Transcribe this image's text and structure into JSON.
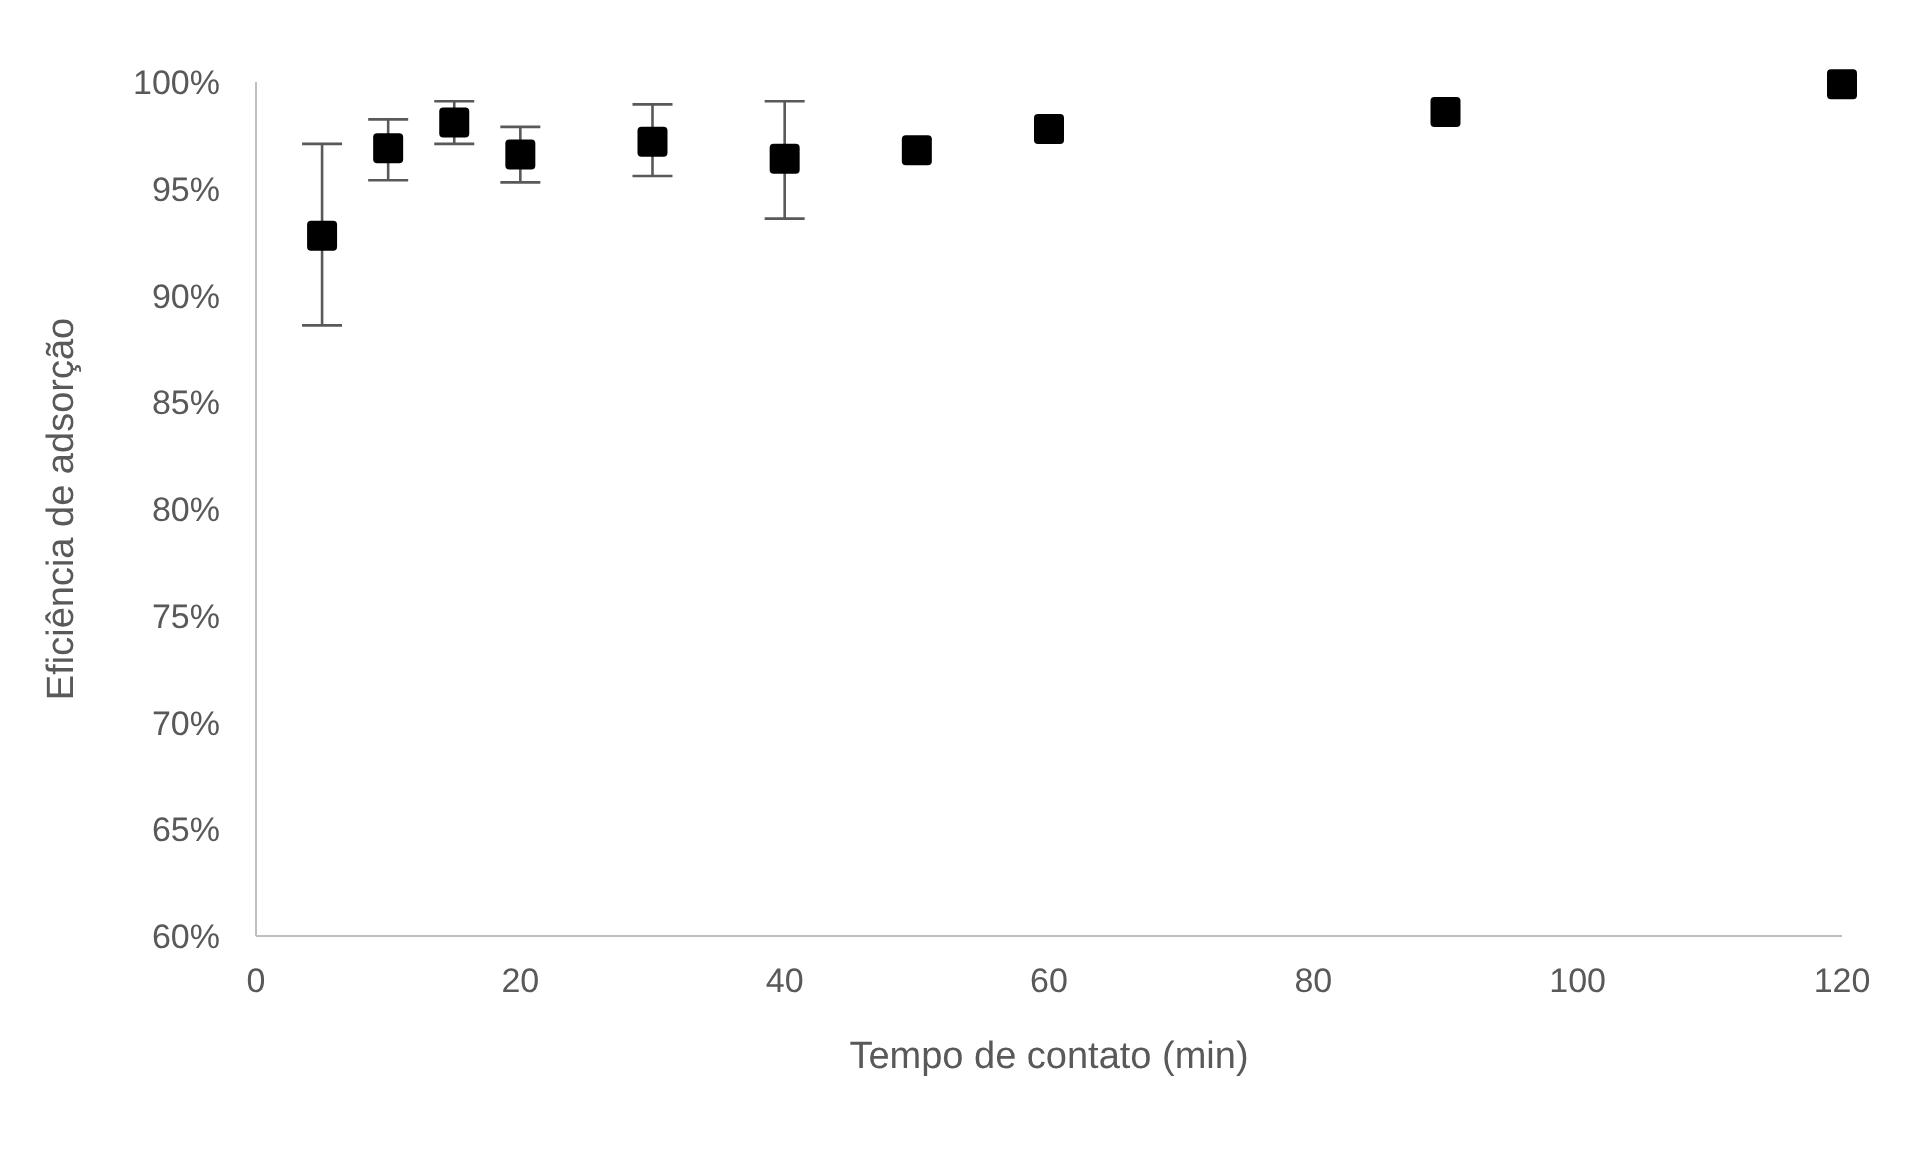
{
  "chart_data": {
    "type": "scatter",
    "xlabel": "Tempo de contato (min)",
    "ylabel": "Eficiência de adsorção",
    "x": [
      5,
      10,
      15,
      20,
      30,
      40,
      50,
      60,
      90,
      120
    ],
    "series": [
      {
        "color": "#000000",
        "values": [
          92.8,
          96.9,
          98.1,
          96.6,
          97.2,
          96.4,
          96.8,
          97.8,
          98.6,
          99.9
        ],
        "errors": [
          [
            88.6,
            97.1
          ],
          [
            95.4,
            98.25
          ],
          [
            97.1,
            99.1
          ],
          [
            95.3,
            97.9
          ],
          [
            95.6,
            98.95
          ],
          [
            93.6,
            99.1
          ],
          null,
          null,
          null,
          null
        ]
      }
    ],
    "xlim": [
      0,
      120
    ],
    "xticks": [
      0,
      20,
      40,
      60,
      80,
      100,
      120
    ],
    "ylim": [
      60,
      100
    ],
    "yticks": [
      {
        "value": 60,
        "label": "60%"
      },
      {
        "value": 65,
        "label": "65%"
      },
      {
        "value": 70,
        "label": "70%"
      },
      {
        "value": 75,
        "label": "75%"
      },
      {
        "value": 80,
        "label": "80%"
      },
      {
        "value": 85,
        "label": "85%"
      },
      {
        "value": 90,
        "label": "90%"
      },
      {
        "value": 95,
        "label": "95%"
      },
      {
        "value": 100,
        "label": "100%"
      }
    ],
    "marker": "square",
    "grid": false,
    "legend": false
  }
}
